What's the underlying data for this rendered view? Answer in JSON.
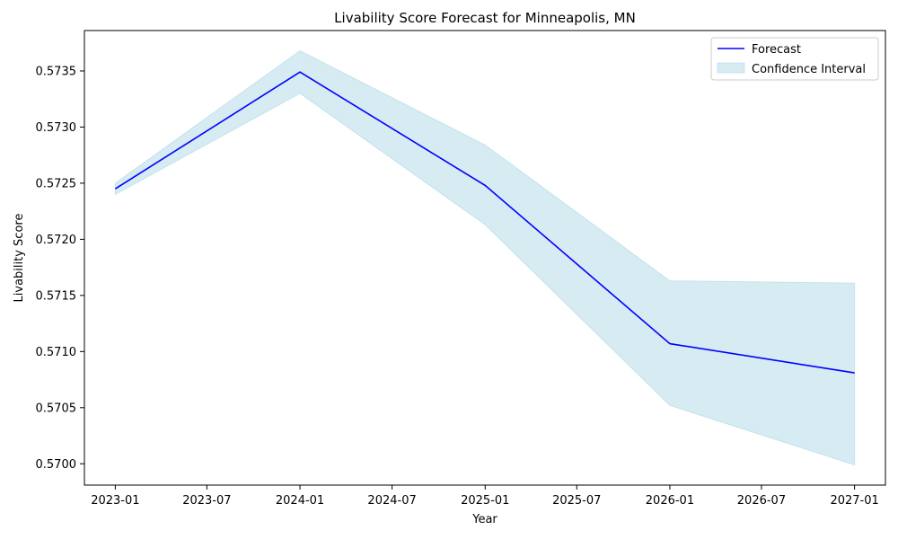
{
  "chart_data": {
    "type": "line",
    "title": "Livability Score Forecast for Minneapolis, MN",
    "xlabel": "Year",
    "ylabel": "Livability Score",
    "x": [
      "2023-01-01",
      "2024-01-01",
      "2025-01-01",
      "2026-01-01",
      "2027-01-01"
    ],
    "series": [
      {
        "name": "Forecast",
        "color": "#0000ff",
        "values": [
          0.57245,
          0.57349,
          0.57248,
          0.57107,
          0.57081
        ]
      }
    ],
    "band": {
      "name": "Confidence Interval",
      "color": "#add8e6",
      "lower": [
        0.5724,
        0.5733,
        0.57213,
        0.57052,
        0.56999
      ],
      "upper": [
        0.5725,
        0.57368,
        0.57284,
        0.57163,
        0.57161
      ]
    },
    "xlim": [
      "2022-11-01",
      "2027-03-03"
    ],
    "ylim": [
      0.56981,
      0.57386
    ],
    "xticks": [
      {
        "date": "2023-01-01",
        "label": "2023-01"
      },
      {
        "date": "2023-07-01",
        "label": "2023-07"
      },
      {
        "date": "2024-01-01",
        "label": "2024-01"
      },
      {
        "date": "2024-07-01",
        "label": "2024-07"
      },
      {
        "date": "2025-01-01",
        "label": "2025-01"
      },
      {
        "date": "2025-07-01",
        "label": "2025-07"
      },
      {
        "date": "2026-01-01",
        "label": "2026-01"
      },
      {
        "date": "2026-07-01",
        "label": "2026-07"
      },
      {
        "date": "2027-01-01",
        "label": "2027-01"
      }
    ],
    "yticks": [
      {
        "value": 0.57,
        "label": "0.5700"
      },
      {
        "value": 0.5705,
        "label": "0.5705"
      },
      {
        "value": 0.571,
        "label": "0.5710"
      },
      {
        "value": 0.5715,
        "label": "0.5715"
      },
      {
        "value": 0.572,
        "label": "0.5720"
      },
      {
        "value": 0.5725,
        "label": "0.5725"
      },
      {
        "value": 0.573,
        "label": "0.5730"
      },
      {
        "value": 0.5735,
        "label": "0.5735"
      }
    ],
    "grid": false,
    "legend": {
      "position": "top-right",
      "entries": [
        "Forecast",
        "Confidence Interval"
      ]
    }
  }
}
